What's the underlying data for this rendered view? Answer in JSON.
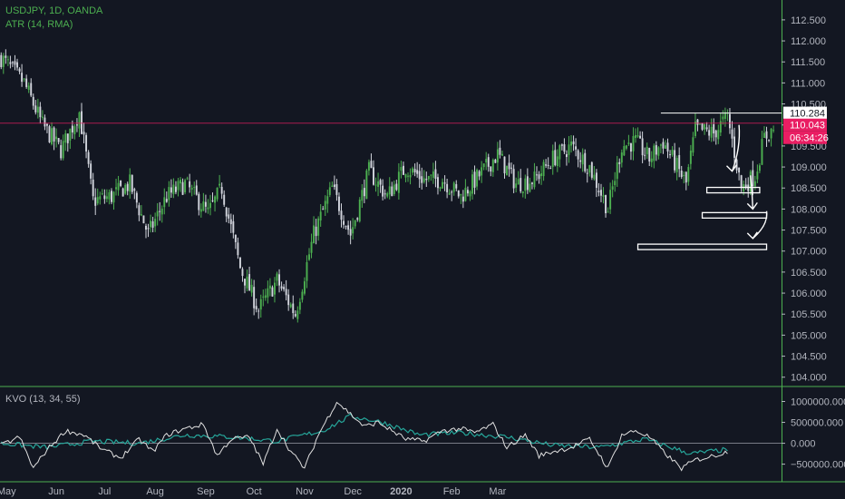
{
  "header": {
    "title": "USDJPY, 1D, OANDA",
    "indicator": "ATR (14, RMA)",
    "oscillator": "KVO (13, 34, 55)"
  },
  "colors": {
    "background": "#131722",
    "up": "#4caf50",
    "down": "#d1d4dc",
    "price_line": "#e91e63",
    "grid_divider": "#4caf50",
    "kvo": "#e0e0e0",
    "signal": "#26a69a"
  },
  "chart_data": {
    "type": "candlestick",
    "symbol": "USDJPY",
    "interval": "1D",
    "x_ticks": [
      "May",
      "Jun",
      "Jul",
      "Aug",
      "Sep",
      "Oct",
      "Nov",
      "Dec",
      "2020",
      "Feb",
      "Mar"
    ],
    "price_axis": {
      "ticks": [
        "112.500",
        "112.000",
        "111.500",
        "111.000",
        "110.500",
        "110.000",
        "109.500",
        "109.000",
        "108.500",
        "108.000",
        "107.500",
        "107.000",
        "106.500",
        "106.000",
        "105.500",
        "105.000",
        "104.500",
        "104.000"
      ],
      "ylim": [
        103.8,
        112.8
      ]
    },
    "price_labels": {
      "high_marker": "110.284",
      "last_price": "110.043",
      "countdown": "06:34:26"
    },
    "close_path": [
      [
        0,
        111.6
      ],
      [
        10,
        111.0
      ],
      [
        18,
        110.0
      ],
      [
        26,
        109.4
      ],
      [
        34,
        110.3
      ],
      [
        40,
        108.2
      ],
      [
        48,
        108.3
      ],
      [
        56,
        108.6
      ],
      [
        64,
        107.4
      ],
      [
        72,
        108.3
      ],
      [
        80,
        108.6
      ],
      [
        90,
        107.9
      ],
      [
        96,
        108.5
      ],
      [
        104,
        106.6
      ],
      [
        112,
        105.6
      ],
      [
        120,
        106.3
      ],
      [
        128,
        105.5
      ],
      [
        136,
        107.4
      ],
      [
        144,
        108.5
      ],
      [
        152,
        107.4
      ],
      [
        160,
        108.9
      ],
      [
        168,
        108.3
      ],
      [
        176,
        109.0
      ],
      [
        184,
        108.7
      ],
      [
        192,
        108.7
      ],
      [
        200,
        108.3
      ],
      [
        208,
        108.8
      ],
      [
        216,
        109.3
      ],
      [
        224,
        108.6
      ],
      [
        232,
        108.7
      ],
      [
        240,
        109.2
      ],
      [
        248,
        109.5
      ],
      [
        256,
        109.0
      ],
      [
        264,
        108.0
      ],
      [
        270,
        109.5
      ],
      [
        276,
        109.6
      ],
      [
        282,
        109.2
      ],
      [
        288,
        109.6
      ],
      [
        294,
        109.0
      ],
      [
        298,
        108.6
      ],
      [
        302,
        109.9
      ],
      [
        310,
        109.8
      ],
      [
        316,
        110.2
      ],
      [
        322,
        108.5
      ],
      [
        328,
        108.8
      ],
      [
        332,
        109.7
      ],
      [
        336,
        109.9
      ]
    ],
    "oscillator_axis": {
      "ticks": [
        "1000000.000",
        "500000.000",
        "0.000",
        "−500000.000"
      ],
      "ylim": [
        -900000,
        1250000
      ]
    },
    "kvo_path": [
      [
        0,
        -50000
      ],
      [
        8,
        150000
      ],
      [
        14,
        -600000
      ],
      [
        20,
        -150000
      ],
      [
        28,
        300000
      ],
      [
        36,
        200000
      ],
      [
        44,
        -150000
      ],
      [
        52,
        -350000
      ],
      [
        60,
        100000
      ],
      [
        66,
        -200000
      ],
      [
        72,
        200000
      ],
      [
        80,
        350000
      ],
      [
        88,
        450000
      ],
      [
        94,
        -300000
      ],
      [
        100,
        100000
      ],
      [
        108,
        150000
      ],
      [
        114,
        -500000
      ],
      [
        120,
        350000
      ],
      [
        126,
        -200000
      ],
      [
        132,
        -600000
      ],
      [
        138,
        200000
      ],
      [
        146,
        1000000
      ],
      [
        152,
        700000
      ],
      [
        158,
        400000
      ],
      [
        164,
        500000
      ],
      [
        170,
        300000
      ],
      [
        176,
        100000
      ],
      [
        184,
        50000
      ],
      [
        192,
        300000
      ],
      [
        200,
        350000
      ],
      [
        206,
        250000
      ],
      [
        214,
        450000
      ],
      [
        220,
        -100000
      ],
      [
        228,
        200000
      ],
      [
        234,
        -300000
      ],
      [
        240,
        -200000
      ],
      [
        248,
        -100000
      ],
      [
        256,
        100000
      ],
      [
        264,
        -600000
      ],
      [
        270,
        200000
      ],
      [
        276,
        300000
      ],
      [
        282,
        150000
      ],
      [
        288,
        -200000
      ],
      [
        296,
        -600000
      ],
      [
        302,
        -400000
      ],
      [
        310,
        -300000
      ],
      [
        316,
        -200000
      ]
    ],
    "signal_path": [
      [
        0,
        0
      ],
      [
        20,
        -100000
      ],
      [
        40,
        50000
      ],
      [
        60,
        0
      ],
      [
        80,
        200000
      ],
      [
        100,
        150000
      ],
      [
        120,
        50000
      ],
      [
        140,
        300000
      ],
      [
        152,
        650000
      ],
      [
        166,
        500000
      ],
      [
        182,
        200000
      ],
      [
        200,
        250000
      ],
      [
        220,
        150000
      ],
      [
        240,
        -50000
      ],
      [
        260,
        -100000
      ],
      [
        280,
        100000
      ],
      [
        300,
        -250000
      ],
      [
        316,
        -150000
      ]
    ],
    "drawn_zones": [
      {
        "from": 307,
        "to": 330,
        "price": 108.45
      },
      {
        "from": 305,
        "to": 333,
        "price": 107.85
      },
      {
        "from": 277,
        "to": 333,
        "price": 107.1
      }
    ],
    "annotated_high": {
      "from": 287,
      "to": 330,
      "price": 110.284
    }
  }
}
